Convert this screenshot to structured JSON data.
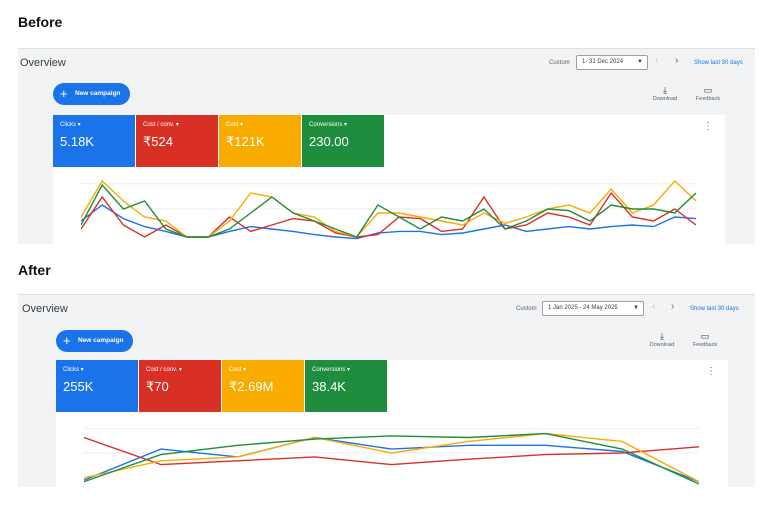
{
  "labels": {
    "before": "Before",
    "after": "After"
  },
  "panels": {
    "before": {
      "title": "Overview",
      "custom_label": "Custom",
      "date_range": "1- 31 Dec 2024",
      "show_last": "Show last 30 days",
      "new_campaign": "New campaign",
      "download": "Download",
      "feedback": "Feedback",
      "metrics": [
        {
          "label": "Clicks",
          "value": "5.18K",
          "color": "#1a73e8"
        },
        {
          "label": "Cost / conv.",
          "value": "₹524",
          "color": "#d93025"
        },
        {
          "label": "Cost",
          "value": "₹121K",
          "color": "#f9ab00"
        },
        {
          "label": "Conversions",
          "value": "230.00",
          "color": "#1e8e3e"
        }
      ]
    },
    "after": {
      "title": "Overview",
      "custom_label": "Custom",
      "date_range": "1 Jan 2025 - 24 May 2025",
      "show_last": "Show last 30 days",
      "new_campaign": "New campaign",
      "download": "Download",
      "feedback": "Feedback",
      "metrics": [
        {
          "label": "Clicks",
          "value": "255K",
          "color": "#1a73e8"
        },
        {
          "label": "Cost / conv.",
          "value": "₹70",
          "color": "#d93025"
        },
        {
          "label": "Cost",
          "value": "₹2.69M",
          "color": "#f9ab00"
        },
        {
          "label": "Conversions",
          "value": "38.4K",
          "color": "#1e8e3e"
        }
      ]
    }
  },
  "icons": {
    "download": "download-icon",
    "feedback": "feedback-icon",
    "more": "more-vert-icon",
    "add": "plus-icon"
  },
  "chart_data": [
    {
      "type": "line",
      "panel": "before",
      "series": [
        {
          "color": "#1a73e8",
          "values": [
            25,
            45,
            28,
            18,
            12,
            5,
            5,
            12,
            18,
            15,
            12,
            8,
            5,
            3,
            10,
            12,
            12,
            8,
            10,
            15,
            20,
            12,
            15,
            18,
            15,
            18,
            20,
            18,
            30,
            28
          ]
        },
        {
          "color": "#d93025",
          "values": [
            15,
            55,
            20,
            5,
            20,
            5,
            5,
            30,
            12,
            20,
            28,
            25,
            10,
            5,
            8,
            30,
            28,
            12,
            15,
            55,
            15,
            20,
            35,
            30,
            20,
            60,
            30,
            25,
            40,
            20
          ]
        },
        {
          "color": "#f9ab00",
          "values": [
            30,
            75,
            50,
            30,
            25,
            5,
            5,
            25,
            60,
            55,
            35,
            30,
            12,
            5,
            35,
            35,
            30,
            25,
            20,
            35,
            22,
            30,
            40,
            45,
            35,
            65,
            35,
            45,
            75,
            50
          ]
        },
        {
          "color": "#1e8e3e",
          "values": [
            20,
            70,
            40,
            50,
            15,
            5,
            5,
            15,
            35,
            55,
            35,
            25,
            15,
            5,
            45,
            30,
            15,
            30,
            25,
            40,
            15,
            25,
            40,
            38,
            25,
            45,
            40,
            40,
            35,
            60
          ]
        }
      ]
    },
    {
      "type": "line",
      "panel": "after",
      "series": [
        {
          "color": "#1a73e8",
          "values": [
            5,
            45,
            35,
            60,
            45,
            50,
            50,
            42,
            3
          ]
        },
        {
          "color": "#d93025",
          "values": [
            60,
            25,
            30,
            35,
            25,
            32,
            38,
            40,
            48
          ]
        },
        {
          "color": "#f9ab00",
          "values": [
            8,
            30,
            35,
            60,
            40,
            55,
            65,
            55,
            3
          ]
        },
        {
          "color": "#1e8e3e",
          "values": [
            3,
            38,
            50,
            58,
            62,
            60,
            65,
            45,
            0
          ]
        }
      ]
    }
  ]
}
